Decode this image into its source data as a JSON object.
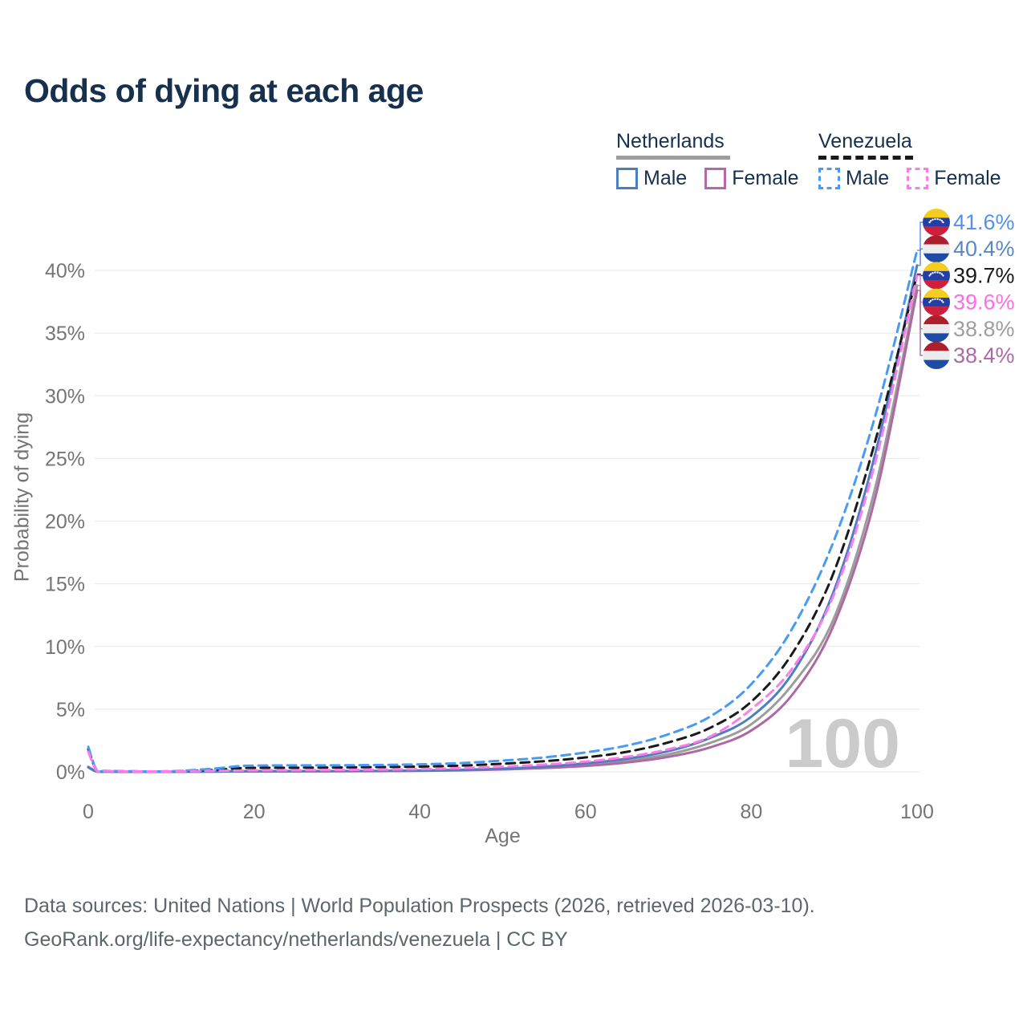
{
  "title": "Odds of dying at each age",
  "legend": {
    "groups": [
      {
        "name": "Netherlands",
        "line_style": "solid",
        "underline_color": "#9e9e9e",
        "items": [
          {
            "label": "Male",
            "color": "#4d7ec2"
          },
          {
            "label": "Female",
            "color": "#b36aa6"
          }
        ]
      },
      {
        "name": "Venezuela",
        "line_style": "dashed",
        "underline_color": "#1a1a1a",
        "items": [
          {
            "label": "Male",
            "color": "#479af5"
          },
          {
            "label": "Female",
            "color": "#ff7ce8"
          }
        ]
      }
    ]
  },
  "chart_data": {
    "type": "line",
    "title": "Odds of dying at each age",
    "xlabel": "Age",
    "ylabel": "Probability of dying",
    "xlim": [
      0,
      100
    ],
    "ylim": [
      0,
      43
    ],
    "x_ticks": [
      0,
      20,
      40,
      60,
      80,
      100
    ],
    "y_ticks": [
      0,
      5,
      10,
      15,
      20,
      25,
      30,
      35,
      40
    ],
    "y_tick_suffix": "%",
    "grid": "horizontal-only",
    "legend_position": "top-right",
    "watermark": "100",
    "x": [
      0,
      1,
      2,
      5,
      10,
      15,
      18,
      20,
      25,
      30,
      35,
      40,
      45,
      50,
      55,
      60,
      65,
      70,
      75,
      80,
      85,
      90,
      95,
      100
    ],
    "series": [
      {
        "name": "Venezuela Male",
        "country": "Venezuela",
        "sex": "Male",
        "flag": "ve",
        "dashed": true,
        "color": "#479af5",
        "label_color": "#5590ef",
        "end_label": "41.6%",
        "end_value": 41.6,
        "values": [
          2.0,
          0.15,
          0.08,
          0.05,
          0.05,
          0.25,
          0.45,
          0.5,
          0.52,
          0.52,
          0.55,
          0.6,
          0.7,
          0.9,
          1.15,
          1.55,
          2.1,
          3.0,
          4.4,
          7.0,
          11.5,
          18.5,
          28.5,
          41.6
        ]
      },
      {
        "name": "Netherlands Male",
        "country": "Netherlands",
        "sex": "Male",
        "flag": "nl",
        "dashed": false,
        "color": "#4d7ec2",
        "label_color": "#5b87c5",
        "end_label": "40.4%",
        "end_value": 40.4,
        "values": [
          0.4,
          0.03,
          0.02,
          0.01,
          0.01,
          0.03,
          0.05,
          0.06,
          0.06,
          0.07,
          0.08,
          0.11,
          0.16,
          0.26,
          0.42,
          0.68,
          1.05,
          1.65,
          2.7,
          4.4,
          7.9,
          14.5,
          25.5,
          40.4
        ]
      },
      {
        "name": "Venezuela Both sexes",
        "country": "Venezuela",
        "sex": "Both",
        "flag": "ve",
        "dashed": true,
        "color": "#1a1a1a",
        "label_color": "#1a1a1a",
        "end_label": "39.7%",
        "end_value": 39.7,
        "values": [
          1.8,
          0.12,
          0.07,
          0.04,
          0.04,
          0.15,
          0.28,
          0.32,
          0.33,
          0.35,
          0.38,
          0.42,
          0.5,
          0.65,
          0.85,
          1.15,
          1.6,
          2.35,
          3.5,
          5.6,
          9.5,
          16.0,
          26.5,
          39.7
        ]
      },
      {
        "name": "Venezuela Female",
        "country": "Venezuela",
        "sex": "Female",
        "flag": "ve",
        "dashed": true,
        "color": "#ff7ce8",
        "label_color": "#ff6ce8",
        "end_label": "39.6%",
        "end_value": 39.6,
        "values": [
          1.6,
          0.1,
          0.06,
          0.035,
          0.035,
          0.08,
          0.1,
          0.12,
          0.13,
          0.15,
          0.18,
          0.22,
          0.3,
          0.42,
          0.58,
          0.82,
          1.2,
          1.8,
          2.8,
          5.0,
          8.3,
          14.2,
          24.8,
          39.6
        ]
      },
      {
        "name": "Netherlands Both sexes",
        "country": "Netherlands",
        "sex": "Both",
        "flag": "nl",
        "dashed": false,
        "color": "#9c9c9c",
        "label_color": "#9e9e9e",
        "end_label": "38.8%",
        "end_value": 38.8,
        "values": [
          0.38,
          0.025,
          0.02,
          0.01,
          0.01,
          0.025,
          0.04,
          0.045,
          0.05,
          0.055,
          0.07,
          0.095,
          0.14,
          0.22,
          0.36,
          0.57,
          0.9,
          1.4,
          2.3,
          3.8,
          7.0,
          12.3,
          22.8,
          38.8
        ]
      },
      {
        "name": "Netherlands Female",
        "country": "Netherlands",
        "sex": "Female",
        "flag": "nl",
        "dashed": false,
        "color": "#ad69a1",
        "label_color": "#ab6aa4",
        "end_label": "38.4%",
        "end_value": 38.4,
        "values": [
          0.35,
          0.02,
          0.015,
          0.01,
          0.01,
          0.02,
          0.03,
          0.035,
          0.04,
          0.045,
          0.06,
          0.08,
          0.12,
          0.19,
          0.3,
          0.47,
          0.75,
          1.2,
          1.95,
          3.3,
          6.2,
          11.8,
          22.0,
          38.4
        ]
      }
    ]
  },
  "footer": {
    "line1": "Data sources: United Nations | World Population Prospects (2026, retrieved 2026-03-10).",
    "line2": "GeoRank.org/life-expectancy/netherlands/venezuela | CC BY"
  },
  "flag_colors": {
    "nl": [
      "#ad1f2d",
      "#ececec",
      "#1e4ba5"
    ],
    "ve": [
      "#f5cd1f",
      "#233fa5",
      "#cf1f3b"
    ]
  }
}
